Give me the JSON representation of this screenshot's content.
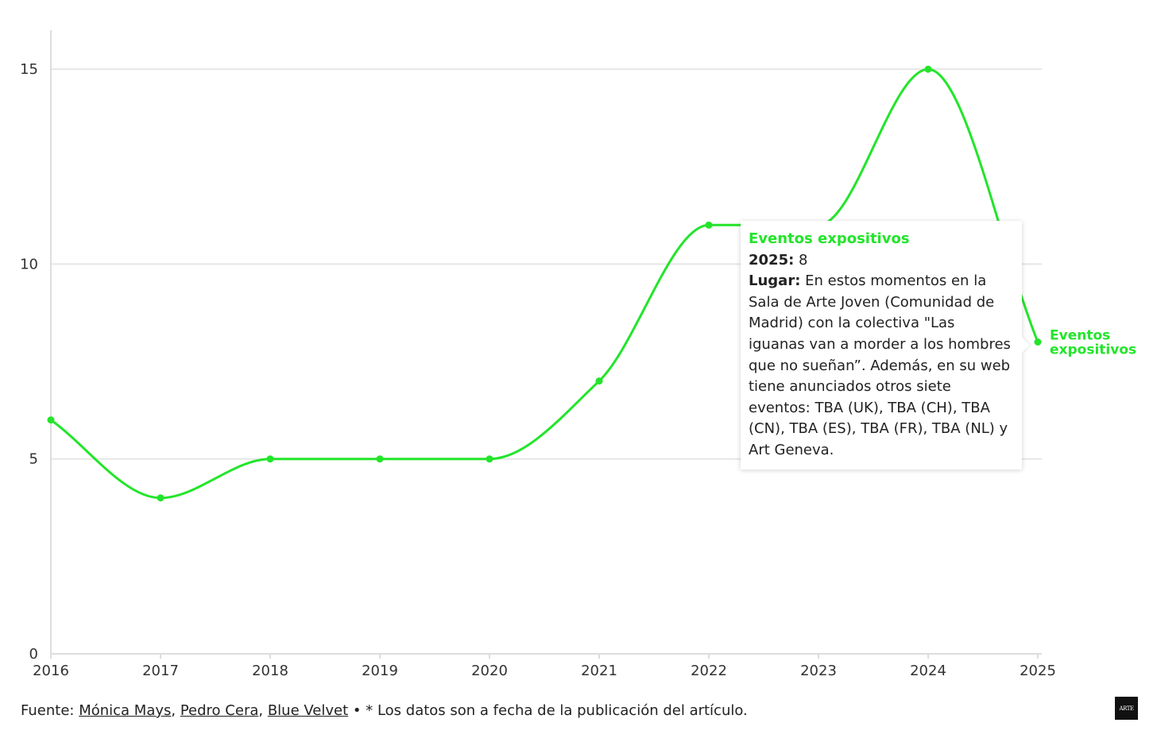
{
  "chart_data": {
    "type": "line",
    "x": [
      "2016",
      "2017",
      "2018",
      "2019",
      "2020",
      "2021",
      "2022",
      "2023",
      "2024",
      "2025"
    ],
    "series": [
      {
        "name": "Eventos expositivos",
        "values": [
          6,
          4,
          5,
          5,
          5,
          7,
          11,
          11,
          15,
          8
        ],
        "color": "#22e52a"
      }
    ],
    "yticks": [
      0,
      5,
      10,
      15
    ],
    "ylim": [
      0,
      16
    ],
    "grid": true,
    "curve": "smooth"
  },
  "tooltip": {
    "title": "Eventos expositivos",
    "year_label": "2025:",
    "year_value": "8",
    "place_label": "Lugar:",
    "place_text": "En estos momentos en la Sala de Arte Joven (Comunidad de Madrid) con la colectiva \"Las iguanas van a morder a los hombres que no sueñan”. Además, en su web tiene anunciados otros siete eventos: TBA (UK), TBA (CH), TBA (CN), TBA (ES), TBA (FR), TBA (NL) y Art Geneva."
  },
  "footer": {
    "prefix": "Fuente: ",
    "sources": [
      "Mónica Mays",
      "Pedro Cera",
      "Blue Velvet"
    ],
    "separator": ", ",
    "note": " • * Los datos son a fecha de la publicación del artículo."
  },
  "logo": {
    "text": "ARTE"
  },
  "colors": {
    "series": "#22e52a",
    "grid": "#e6e6e6",
    "axis": "#dddddd"
  }
}
